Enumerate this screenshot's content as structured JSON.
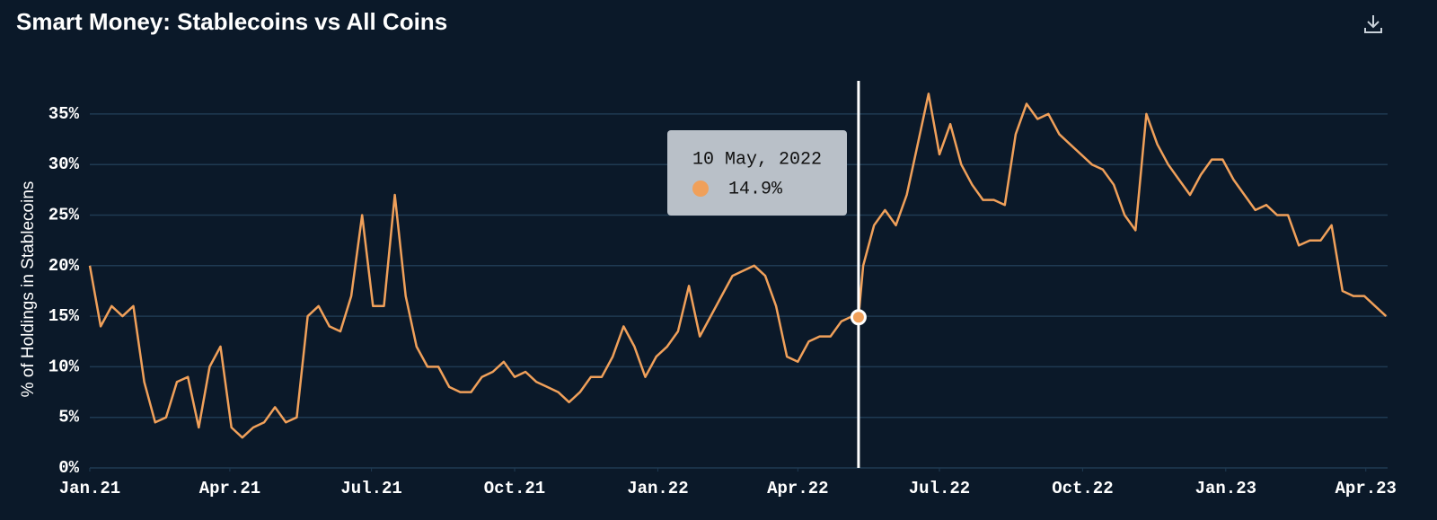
{
  "chart_data": {
    "type": "line",
    "title": "Smart Money: Stablecoins vs All Coins",
    "y_label": "% of Holdings in Stablecoins",
    "color": "#f0a05a",
    "grid": true,
    "xlim": [
      "2021-01-01",
      "2023-04-15"
    ],
    "xticks": [
      {
        "value": "2021-01-01",
        "label": "Jan.21"
      },
      {
        "value": "2021-04-01",
        "label": "Apr.21"
      },
      {
        "value": "2021-07-01",
        "label": "Jul.21"
      },
      {
        "value": "2021-10-01",
        "label": "Oct.21"
      },
      {
        "value": "2022-01-01",
        "label": "Jan.22"
      },
      {
        "value": "2022-04-01",
        "label": "Apr.22"
      },
      {
        "value": "2022-07-01",
        "label": "Jul.22"
      },
      {
        "value": "2022-10-01",
        "label": "Oct.22"
      },
      {
        "value": "2023-01-01",
        "label": "Jan.23"
      },
      {
        "value": "2023-04-01",
        "label": "Apr.23"
      }
    ],
    "ylim": [
      0,
      38.5
    ],
    "yticks": [
      {
        "value": 0,
        "label": "0%"
      },
      {
        "value": 5,
        "label": "5%"
      },
      {
        "value": 10,
        "label": "10%"
      },
      {
        "value": 15,
        "label": "15%"
      },
      {
        "value": 20,
        "label": "20%"
      },
      {
        "value": 25,
        "label": "25%"
      },
      {
        "value": 30,
        "label": "30%"
      },
      {
        "value": 35,
        "label": "35%"
      }
    ],
    "x": [
      "2021-01-01",
      "2021-01-08",
      "2021-01-15",
      "2021-01-22",
      "2021-01-29",
      "2021-02-05",
      "2021-02-12",
      "2021-02-19",
      "2021-02-26",
      "2021-03-05",
      "2021-03-12",
      "2021-03-19",
      "2021-03-26",
      "2021-04-02",
      "2021-04-09",
      "2021-04-16",
      "2021-04-23",
      "2021-04-30",
      "2021-05-07",
      "2021-05-14",
      "2021-05-21",
      "2021-05-28",
      "2021-06-04",
      "2021-06-11",
      "2021-06-18",
      "2021-06-25",
      "2021-07-02",
      "2021-07-09",
      "2021-07-16",
      "2021-07-23",
      "2021-07-30",
      "2021-08-06",
      "2021-08-13",
      "2021-08-20",
      "2021-08-27",
      "2021-09-03",
      "2021-09-10",
      "2021-09-17",
      "2021-09-24",
      "2021-10-01",
      "2021-10-08",
      "2021-10-15",
      "2021-10-22",
      "2021-10-29",
      "2021-11-05",
      "2021-11-12",
      "2021-11-19",
      "2021-11-26",
      "2021-12-03",
      "2021-12-10",
      "2021-12-17",
      "2021-12-24",
      "2021-12-31",
      "2022-01-07",
      "2022-01-14",
      "2022-01-21",
      "2022-01-28",
      "2022-02-04",
      "2022-02-11",
      "2022-02-18",
      "2022-02-25",
      "2022-03-04",
      "2022-03-11",
      "2022-03-18",
      "2022-03-25",
      "2022-04-01",
      "2022-04-08",
      "2022-04-15",
      "2022-04-22",
      "2022-04-29",
      "2022-05-06",
      "2022-05-10",
      "2022-05-13",
      "2022-05-20",
      "2022-05-27",
      "2022-06-03",
      "2022-06-10",
      "2022-06-17",
      "2022-06-24",
      "2022-07-01",
      "2022-07-08",
      "2022-07-15",
      "2022-07-22",
      "2022-07-29",
      "2022-08-05",
      "2022-08-12",
      "2022-08-19",
      "2022-08-26",
      "2022-09-02",
      "2022-09-09",
      "2022-09-16",
      "2022-09-23",
      "2022-09-30",
      "2022-10-07",
      "2022-10-14",
      "2022-10-21",
      "2022-10-28",
      "2022-11-04",
      "2022-11-11",
      "2022-11-18",
      "2022-11-25",
      "2022-12-02",
      "2022-12-09",
      "2022-12-16",
      "2022-12-23",
      "2022-12-30",
      "2023-01-06",
      "2023-01-13",
      "2023-01-20",
      "2023-01-27",
      "2023-02-03",
      "2023-02-10",
      "2023-02-17",
      "2023-02-24",
      "2023-03-03",
      "2023-03-10",
      "2023-03-17",
      "2023-03-24",
      "2023-03-31",
      "2023-04-07",
      "2023-04-14"
    ],
    "values": [
      20,
      14,
      16,
      15,
      16,
      8.5,
      4.5,
      5,
      8.5,
      9,
      4,
      10,
      12,
      4,
      3,
      4,
      4.5,
      6,
      4.5,
      5,
      15,
      16,
      14,
      13.5,
      17,
      25,
      16,
      16,
      27,
      17,
      12,
      10,
      10,
      8,
      7.5,
      7.5,
      9,
      9.5,
      10.5,
      9,
      9.5,
      8.5,
      8,
      7.5,
      6.5,
      7.5,
      9,
      9,
      11,
      14,
      12,
      9,
      11,
      12,
      13.5,
      18,
      13,
      15,
      17,
      19,
      19.5,
      20,
      19,
      16,
      11,
      10.5,
      12.5,
      13,
      13,
      14.5,
      15,
      14.9,
      20,
      24,
      25.5,
      24,
      27,
      32,
      37,
      31,
      34,
      30,
      28,
      26.5,
      26.5,
      26,
      33,
      36,
      34.5,
      35,
      33,
      32,
      31,
      30,
      29.5,
      28,
      25,
      23.5,
      35,
      32,
      30,
      28.5,
      27,
      29,
      30.5,
      30.5,
      28.5,
      27,
      25.5,
      26,
      25,
      25,
      22,
      22.5,
      22.5,
      24,
      17.5,
      17,
      17,
      16,
      15
    ],
    "tooltip": {
      "x": "2022-05-10",
      "label": "10 May, 2022",
      "value": 14.9,
      "value_label": "14.9%"
    }
  }
}
